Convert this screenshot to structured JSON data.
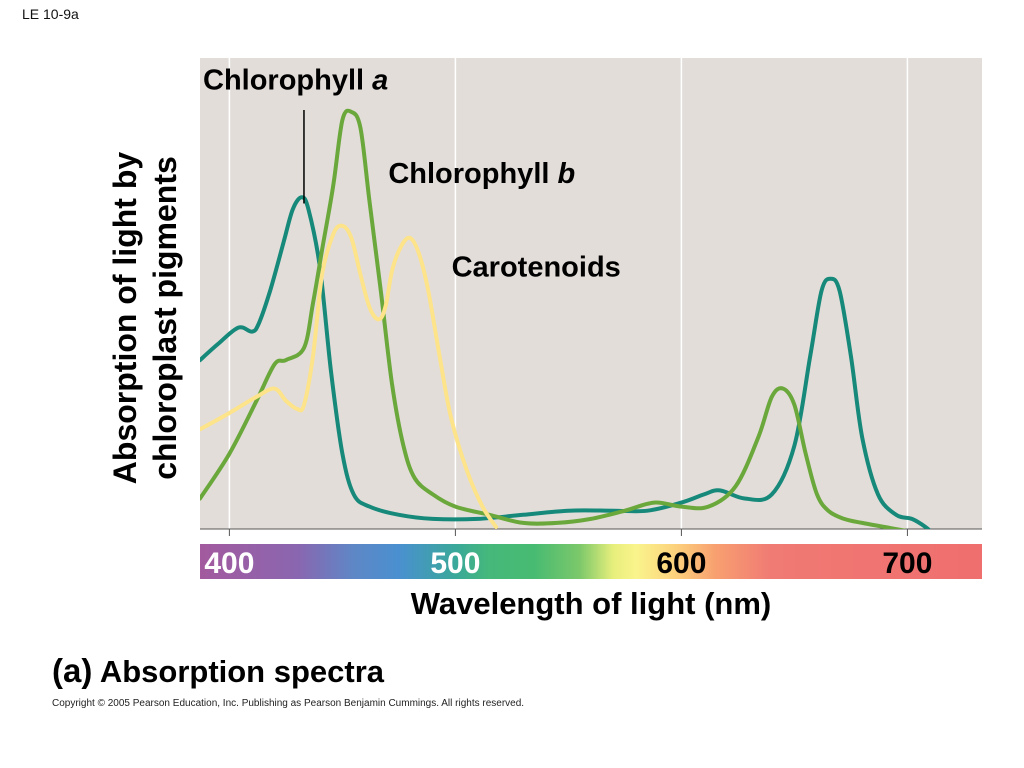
{
  "figure_id": "LE 10-9a",
  "panel_letter": "(a)",
  "panel_title": "Absorption spectra",
  "copyright": "Copyright ©  2005 Pearson Education, Inc. Publishing as Pearson Benjamin Cummings. All rights reserved.",
  "chart_data": {
    "type": "line",
    "title": "",
    "xlabel": "Wavelength of light (nm)",
    "ylabel_line1": "Absorption of light by",
    "ylabel_line2": "chloroplast pigments",
    "xlim": [
      387,
      733
    ],
    "ylim": [
      0,
      100
    ],
    "x_ticks": [
      400,
      500,
      600,
      700
    ],
    "x_tick_colors": [
      "#ffffff",
      "#ffffff",
      "#000000",
      "#000000"
    ],
    "grid": true,
    "plot_background": "#e2ddd9",
    "gridline_color": "#ffffff",
    "series": [
      {
        "name_base": "Chlorophyll",
        "name_italic": "a",
        "color": "#16897a",
        "label_anchor": [
          387,
          110
        ],
        "pointer": [
          [
            433,
            79
          ],
          [
            433,
            100
          ]
        ],
        "x": [
          387,
          395,
          404,
          410,
          413,
          418,
          424,
          428,
          432,
          435,
          440,
          445,
          450,
          455,
          462,
          475,
          490,
          510,
          530,
          550,
          570,
          585,
          600,
          610,
          617,
          628,
          640,
          650,
          657,
          662,
          666,
          670,
          675,
          680,
          687,
          695,
          702,
          708,
          712
        ],
        "y": [
          41,
          45,
          49,
          48,
          50,
          58,
          70,
          78,
          81,
          78,
          64,
          38,
          18,
          8,
          5,
          3,
          2,
          2,
          3,
          4,
          4,
          4,
          6,
          8,
          9,
          7,
          8,
          20,
          42,
          58,
          61,
          58,
          42,
          22,
          8,
          3,
          2,
          0,
          -2
        ]
      },
      {
        "name_base": "Chlorophyll",
        "name_italic": "b",
        "color": "#6ba83c",
        "label_anchor": [
          469,
          87
        ],
        "x": [
          387,
          400,
          412,
          420,
          425,
          433,
          437,
          441,
          446,
          450,
          454,
          458,
          462,
          467,
          472,
          477,
          482,
          490,
          500,
          515,
          530,
          545,
          560,
          575,
          588,
          600,
          612,
          624,
          634,
          640,
          645,
          650,
          655,
          660,
          665,
          672,
          680,
          690,
          700
        ],
        "y": [
          7,
          18,
          31,
          40,
          41,
          44,
          55,
          68,
          84,
          100,
          102,
          98,
          80,
          58,
          35,
          20,
          12,
          8,
          5,
          3,
          1,
          1,
          2,
          4,
          6,
          5,
          5,
          10,
          22,
          32,
          34,
          30,
          18,
          8,
          4,
          2,
          1,
          0,
          -1
        ]
      },
      {
        "name": "Carotenoids",
        "color": "#fde38a",
        "label_anchor": [
          497,
          64
        ],
        "x": [
          387,
          400,
          412,
          420,
          425,
          430,
          433,
          437,
          441,
          446,
          450,
          454,
          458,
          462,
          466,
          469,
          472,
          476,
          480,
          484,
          488,
          493,
          498,
          505,
          512,
          518
        ],
        "y": [
          24,
          28,
          32,
          34,
          31,
          29,
          30,
          42,
          62,
          72,
          74,
          71,
          62,
          54,
          51,
          54,
          63,
          69,
          71,
          67,
          58,
          42,
          27,
          14,
          5,
          0
        ]
      }
    ],
    "spectrum_bar": {
      "stops": [
        {
          "nm": 387,
          "color": "#a35a9e"
        },
        {
          "nm": 430,
          "color": "#8a66b0"
        },
        {
          "nm": 455,
          "color": "#5e87c6"
        },
        {
          "nm": 475,
          "color": "#4a90d0"
        },
        {
          "nm": 500,
          "color": "#3aa89a"
        },
        {
          "nm": 515,
          "color": "#45b87a"
        },
        {
          "nm": 535,
          "color": "#48bb72"
        },
        {
          "nm": 555,
          "color": "#7cc86a"
        },
        {
          "nm": 570,
          "color": "#e8ef7c"
        },
        {
          "nm": 580,
          "color": "#faf48c"
        },
        {
          "nm": 598,
          "color": "#fcd07c"
        },
        {
          "nm": 615,
          "color": "#f8a070"
        },
        {
          "nm": 640,
          "color": "#f07a74"
        },
        {
          "nm": 733,
          "color": "#ef6e6e"
        }
      ]
    }
  }
}
